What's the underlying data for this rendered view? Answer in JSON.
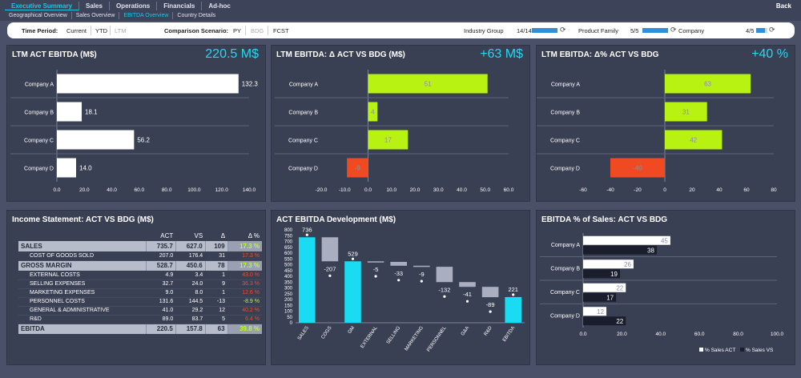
{
  "nav": {
    "top_tabs": [
      "Executive Summary",
      "Sales",
      "Operations",
      "Financials",
      "Ad-hoc"
    ],
    "sub_tabs": [
      "Geographical Overview",
      "Sales Overview",
      "EBITDA Overview",
      "Country Details"
    ],
    "back_label": "Back"
  },
  "filters": {
    "time_period_label": "Time Period:",
    "time_options": [
      "Current",
      "YTD",
      "LTM"
    ],
    "comparison_label": "Comparison Scenario:",
    "comparison_options": [
      "PY",
      "BDG",
      "FCST"
    ],
    "industry_label": "Industry Group",
    "industry_value": "14/14",
    "industry_fraction": 1.0,
    "family_label": "Product Family",
    "family_value": "5/5",
    "family_fraction": 1.0,
    "company_label": "Company",
    "company_value": "4/5",
    "company_fraction": 0.8
  },
  "panels": {
    "ebitda_act": {
      "title": "LTM ACT EBITDA (M$)",
      "kpi": "220.5 M$"
    },
    "ebitda_delta": {
      "title": "LTM EBITDA: Δ ACT VS BDG (M$)",
      "kpi": "+63 M$"
    },
    "ebitda_pct": {
      "title": "LTM EBITDA: Δ% ACT VS BDG",
      "kpi": "+40 %"
    },
    "income": {
      "title": "Income Statement: ACT VS BDG (M$)"
    },
    "development": {
      "title": "ACT EBITDA Development (M$)"
    },
    "ebitda_sales": {
      "title": "EBITDA % of Sales: ACT VS BDG"
    }
  },
  "income_statement": {
    "headers": [
      "",
      "ACT",
      "VS",
      "Δ",
      "Δ %"
    ],
    "rows": [
      {
        "label": "SALES",
        "act": "735.7",
        "vs": "627.0",
        "delta": "109",
        "pct": "17.3 %",
        "major": true,
        "sign": "pos"
      },
      {
        "label": "COST OF GOODS SOLD",
        "act": "207.0",
        "vs": "176.4",
        "delta": "31",
        "pct": "17.3 %",
        "major": false,
        "sign": "neg"
      },
      {
        "label": "GROSS MARGIN",
        "act": "528.7",
        "vs": "450.6",
        "delta": "78",
        "pct": "17.3 %",
        "major": true,
        "sign": "pos"
      },
      {
        "label": "EXTERNAL COSTS",
        "act": "4.9",
        "vs": "3.4",
        "delta": "1",
        "pct": "43.0 %",
        "major": false,
        "sign": "neg"
      },
      {
        "label": "SELLING EXPENSES",
        "act": "32.7",
        "vs": "24.0",
        "delta": "9",
        "pct": "36.3 %",
        "major": false,
        "sign": "neg"
      },
      {
        "label": "MARKETING EXPENSES",
        "act": "9.0",
        "vs": "8.0",
        "delta": "1",
        "pct": "12.6 %",
        "major": false,
        "sign": "neg"
      },
      {
        "label": "PERSONNEL COSTS",
        "act": "131.6",
        "vs": "144.5",
        "delta": "-13",
        "pct": "-8.9 %",
        "major": false,
        "sign": "pos"
      },
      {
        "label": "GENERAL & ADMINISTRATIVE",
        "act": "41.0",
        "vs": "29.2",
        "delta": "12",
        "pct": "40.2 %",
        "major": false,
        "sign": "neg"
      },
      {
        "label": "R&D",
        "act": "89.0",
        "vs": "83.7",
        "delta": "5",
        "pct": "6.4 %",
        "major": false,
        "sign": "neg"
      },
      {
        "label": "EBITDA",
        "act": "220.5",
        "vs": "157.8",
        "delta": "63",
        "pct": "39.8 %",
        "major": true,
        "sign": "pos"
      }
    ]
  },
  "chart_data": [
    {
      "id": "ebitda_act",
      "type": "bar",
      "orientation": "horizontal",
      "categories": [
        "Company A",
        "Company B",
        "Company C",
        "Company D"
      ],
      "values": [
        132.3,
        18.1,
        56.2,
        14.0
      ],
      "value_labels": [
        "132.3",
        "18.1",
        "56.2",
        "14.0"
      ],
      "xlim": [
        0,
        140
      ],
      "xticks": [
        0,
        20,
        40,
        60,
        80,
        100,
        120,
        140
      ],
      "xtick_labels": [
        "0.0",
        "20.0",
        "40.0",
        "60.0",
        "80.0",
        "100.0",
        "120.0",
        "140.0"
      ],
      "color": "#ffffff"
    },
    {
      "id": "ebitda_delta",
      "type": "bar",
      "orientation": "horizontal",
      "categories": [
        "Company A",
        "Company B",
        "Company C",
        "Company D"
      ],
      "values": [
        51,
        4,
        17,
        -9
      ],
      "value_labels": [
        "51",
        "4",
        "17",
        "-9"
      ],
      "xlim": [
        -20,
        60
      ],
      "xticks": [
        -20,
        -10,
        0,
        10,
        20,
        30,
        40,
        50,
        60
      ],
      "xtick_labels": [
        "-20.0",
        "-10.0",
        "0.0",
        "10.0",
        "20.0",
        "30.0",
        "40.0",
        "50.0",
        "60.0"
      ],
      "pos_color": "#b8f213",
      "neg_color": "#f04a22"
    },
    {
      "id": "ebitda_pct",
      "type": "bar",
      "orientation": "horizontal",
      "categories": [
        "Company A",
        "Company B",
        "Company C",
        "Company D"
      ],
      "values": [
        63,
        31,
        42,
        -40
      ],
      "value_labels": [
        "63",
        "31",
        "42",
        "-40"
      ],
      "xlim": [
        -60,
        80
      ],
      "xticks": [
        -60,
        -40,
        -20,
        0,
        20,
        40,
        60,
        80
      ],
      "xtick_labels": [
        "-60",
        "-40",
        "-20",
        "0",
        "20",
        "40",
        "60",
        "80"
      ],
      "pos_color": "#b8f213",
      "neg_color": "#f04a22"
    },
    {
      "id": "development",
      "type": "bar",
      "subtype": "waterfall",
      "categories": [
        "SALES",
        "COGS",
        "GM",
        "EXTERNAL",
        "SELLING",
        "MARKETING",
        "PERSONNEL",
        "G&A",
        "R&D",
        "EBITDA"
      ],
      "values": [
        736,
        -207,
        529,
        -5,
        -33,
        -9,
        -132,
        -41,
        -89,
        221
      ],
      "value_labels": [
        "736",
        "-207",
        "529",
        "-5",
        "-33",
        "-9",
        "-132",
        "-41",
        "-89",
        "221"
      ],
      "totals": [
        true,
        false,
        true,
        false,
        false,
        false,
        false,
        false,
        false,
        true
      ],
      "ylim": [
        0,
        800
      ],
      "yticks": [
        0,
        50,
        100,
        150,
        200,
        250,
        300,
        350,
        400,
        450,
        500,
        550,
        600,
        650,
        700,
        750,
        800
      ],
      "total_color": "#19dcf2",
      "step_color": "#a9aec0"
    },
    {
      "id": "ebitda_sales",
      "type": "bar",
      "orientation": "horizontal",
      "categories": [
        "Company A",
        "Company B",
        "Company C",
        "Company D"
      ],
      "series": [
        {
          "name": "% Sales ACT",
          "values": [
            45,
            26,
            22,
            12
          ],
          "labels": [
            "45",
            "26",
            "22",
            "12"
          ],
          "color": "#ffffff"
        },
        {
          "name": "% Sales VS",
          "values": [
            38,
            19,
            17,
            22
          ],
          "labels": [
            "38",
            "19",
            "17",
            "22"
          ],
          "color": "#1a1d2b"
        }
      ],
      "xlim": [
        0,
        100
      ],
      "xticks": [
        0,
        20,
        40,
        60,
        80,
        100
      ],
      "xtick_labels": [
        "0.0",
        "20.0",
        "40.0",
        "60.0",
        "80.0",
        "100.0"
      ],
      "legend": "bottom-right"
    }
  ]
}
